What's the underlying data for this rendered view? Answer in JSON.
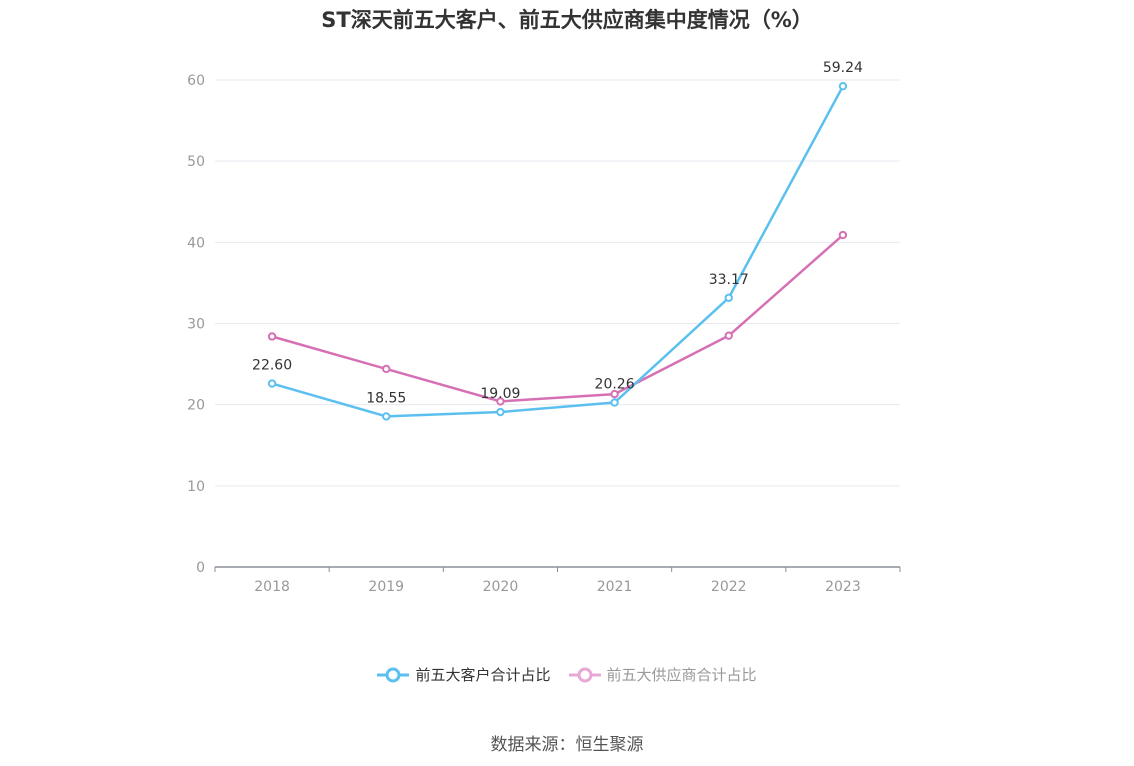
{
  "chart_data": {
    "type": "line",
    "title": "ST深天前五大客户、前五大供应商集中度情况（%）",
    "categories": [
      "2018",
      "2019",
      "2020",
      "2021",
      "2022",
      "2023"
    ],
    "series": [
      {
        "name": "前五大客户合计占比",
        "values": [
          22.6,
          18.55,
          19.09,
          20.26,
          33.17,
          59.24
        ],
        "labels": [
          "22.60",
          "18.55",
          "19.09",
          "20.26",
          "33.17",
          "59.24"
        ],
        "color": "#5bc0f0"
      },
      {
        "name": "前五大供应商合计占比",
        "values": [
          28.4,
          24.4,
          20.4,
          21.3,
          28.5,
          40.9
        ],
        "color": "#d670b4"
      }
    ],
    "ylim": [
      0,
      60
    ],
    "yticks": [
      "0",
      "10",
      "20",
      "30",
      "40",
      "50",
      "60"
    ],
    "grid": true,
    "legend_position": "bottom"
  },
  "source": "数据来源：恒生聚源"
}
